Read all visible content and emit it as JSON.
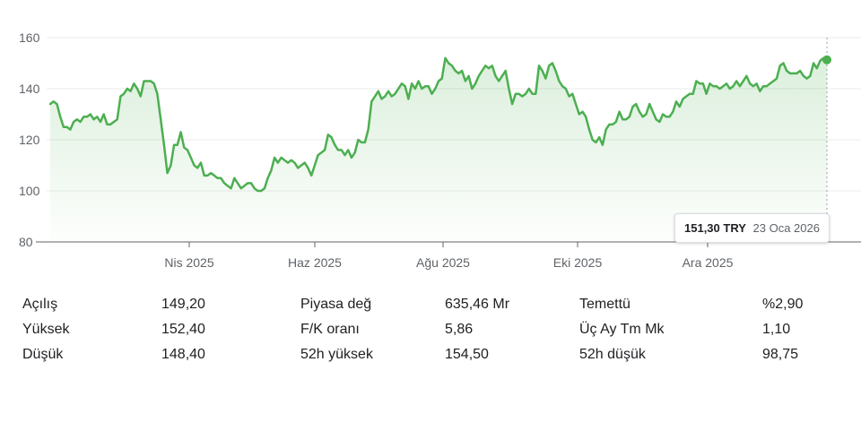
{
  "chart_data": {
    "type": "line",
    "x_ticks": [
      "Nis 2025",
      "Haz 2025",
      "Ağu 2025",
      "Eki 2025",
      "Ara 2025"
    ],
    "y_ticks": [
      "160",
      "140",
      "120",
      "100",
      "80"
    ],
    "ylim": [
      80,
      160
    ],
    "grid": true,
    "line_color": "#4caf50",
    "values": [
      134,
      135,
      134,
      129,
      125,
      125,
      124,
      127,
      128,
      127,
      129,
      129,
      130,
      128,
      129,
      127,
      130,
      126,
      126,
      127,
      128,
      137,
      138,
      140,
      139,
      142,
      140,
      137,
      143,
      143,
      143,
      142,
      138,
      128,
      118,
      107,
      110,
      118,
      118,
      123,
      117,
      116,
      113,
      110,
      109,
      111,
      106,
      106,
      107,
      106,
      105,
      105,
      103,
      102,
      101,
      105,
      103,
      101,
      102,
      103,
      103,
      101,
      100,
      100,
      101,
      105,
      108,
      113,
      111,
      113,
      112,
      111,
      112,
      111,
      109,
      110,
      111,
      109,
      106,
      110,
      114,
      115,
      116,
      122,
      121,
      118,
      116,
      116,
      114,
      116,
      113,
      115,
      120,
      119,
      119,
      124,
      135,
      137,
      139,
      136,
      137,
      139,
      137,
      138,
      140,
      142,
      141,
      136,
      142,
      140,
      143,
      140,
      141,
      141,
      138,
      140,
      143,
      144,
      152,
      150,
      149,
      147,
      146,
      147,
      143,
      145,
      140,
      142,
      145,
      147,
      149,
      148,
      149,
      145,
      143,
      145,
      147,
      140,
      134,
      138,
      138,
      137,
      138,
      140,
      138,
      138,
      149,
      147,
      144,
      149,
      150,
      147,
      143,
      141,
      140,
      137,
      138,
      134,
      130,
      131,
      129,
      124,
      120,
      119,
      121,
      118,
      124,
      126,
      126,
      127,
      131,
      128,
      128,
      129,
      133,
      134,
      131,
      129,
      130,
      134,
      131,
      128,
      127,
      130,
      129,
      129,
      131,
      135,
      133,
      136,
      137,
      138,
      138,
      143,
      142,
      142,
      138,
      142,
      141,
      141,
      140,
      141,
      142,
      140,
      141,
      143,
      141,
      143,
      145,
      142,
      141,
      142,
      139,
      141,
      141,
      142,
      143,
      144,
      149,
      150,
      147,
      146,
      146,
      146,
      147,
      145,
      144,
      145,
      150,
      148,
      151,
      152,
      151.3
    ]
  },
  "tooltip": {
    "price": "151,30 TRY",
    "date": "23 Oca 2026"
  },
  "stats": {
    "col1": [
      {
        "label": "Açılış",
        "value": "149,20"
      },
      {
        "label": "Yüksek",
        "value": "152,40"
      },
      {
        "label": "Düşük",
        "value": "148,40"
      }
    ],
    "col2": [
      {
        "label": "Piyasa değ",
        "value": "635,46 Mr"
      },
      {
        "label": "F/K oranı",
        "value": "5,86"
      },
      {
        "label": "52h yüksek",
        "value": "154,50"
      }
    ],
    "col3": [
      {
        "label": "Temettü",
        "value": "%2,90"
      },
      {
        "label": "Üç Ay Tm Mk",
        "value": "1,10"
      },
      {
        "label": "52h düşük",
        "value": "98,75"
      }
    ]
  }
}
